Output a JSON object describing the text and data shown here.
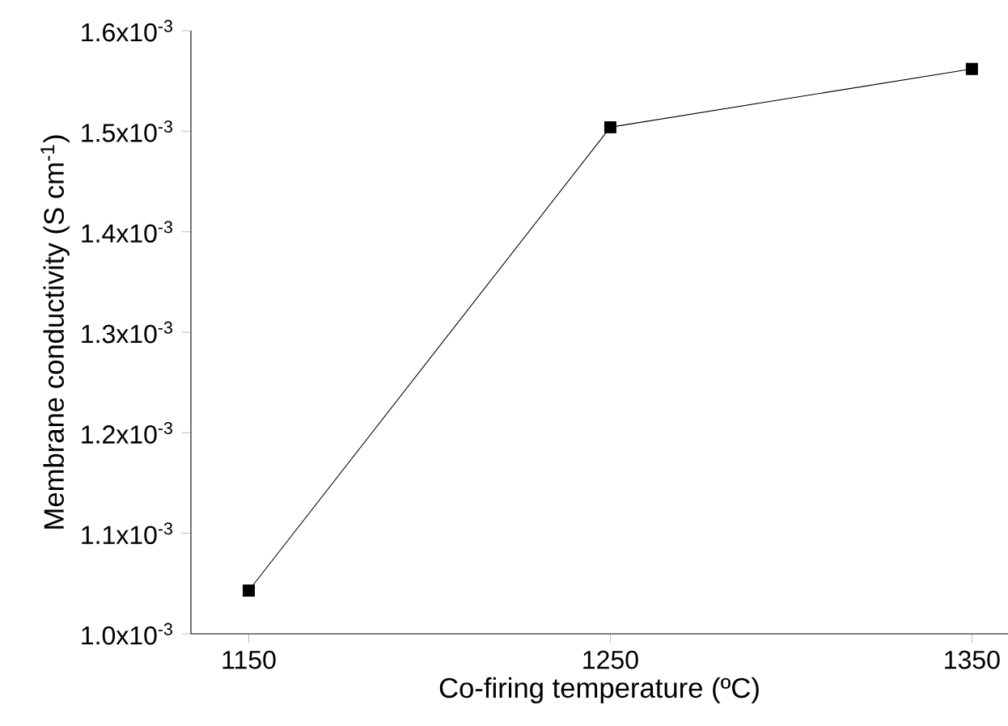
{
  "chart_data": {
    "type": "line",
    "xlabel": "Co-firing temperature (ºC)",
    "ylabel": "Membrane conductivity (S cm$^{-1}$)",
    "x": [
      1150,
      1250,
      1350
    ],
    "series": [
      {
        "color": "#000000",
        "values": [
          0.001043,
          0.001504,
          0.001562
        ]
      }
    ],
    "xlim": [
      1134,
      1360
    ],
    "xticks": [
      1150,
      1250,
      1350
    ],
    "ylim": [
      0.001,
      0.0016
    ],
    "yticks": [
      {
        "value": 0.001,
        "label": "1.0x10$^{-3}$"
      },
      {
        "value": 0.0011,
        "label": "1.1x10$^{-3}$"
      },
      {
        "value": 0.0012,
        "label": "1.2x10$^{-3}$"
      },
      {
        "value": 0.0013,
        "label": "1.3x10$^{-3}$"
      },
      {
        "value": 0.0014,
        "label": "1.4x10$^{-3}$"
      },
      {
        "value": 0.0015,
        "label": "1.5x10$^{-3}$"
      },
      {
        "value": 0.0016,
        "label": "1.6x10$^{-3}$"
      }
    ],
    "marker": "square",
    "line_style": "solid"
  }
}
